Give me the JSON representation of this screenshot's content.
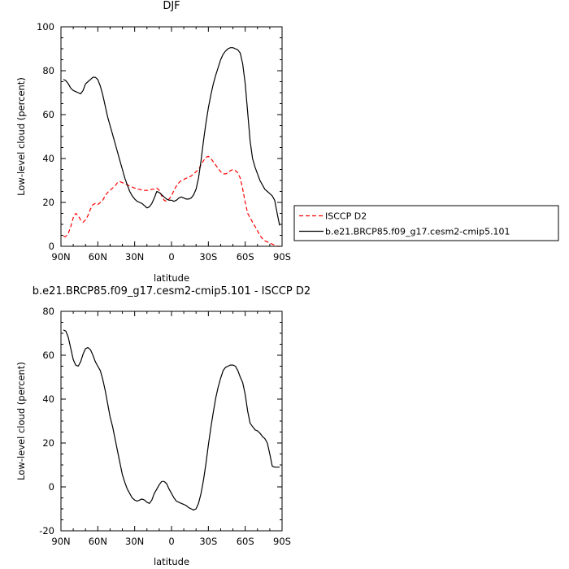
{
  "chart_data": [
    {
      "type": "line",
      "title": "DJF",
      "xlabel": "latitude",
      "ylabel": "Low-level cloud (percent)",
      "ylim": [
        0,
        100
      ],
      "yticks": [
        0,
        20,
        40,
        60,
        80,
        100
      ],
      "xlim": [
        90,
        -90
      ],
      "xticks": [
        {
          "value": 90,
          "label": "90N"
        },
        {
          "value": 60,
          "label": "60N"
        },
        {
          "value": 30,
          "label": "30N"
        },
        {
          "value": 0,
          "label": "0"
        },
        {
          "value": -30,
          "label": "30S"
        },
        {
          "value": -60,
          "label": "60S"
        },
        {
          "value": -90,
          "label": "90S"
        }
      ],
      "legend_position": "right",
      "series": [
        {
          "name": "ISCCP D2",
          "color": "#ff0000",
          "dash": "dashed",
          "x": [
            88,
            86,
            84,
            82,
            80,
            78,
            76,
            74,
            72,
            70,
            68,
            66,
            64,
            62,
            60,
            58,
            56,
            54,
            52,
            50,
            48,
            46,
            44,
            42,
            40,
            38,
            36,
            34,
            32,
            30,
            28,
            26,
            24,
            22,
            20,
            18,
            16,
            14,
            12,
            10,
            8,
            6,
            4,
            2,
            0,
            -2,
            -4,
            -6,
            -8,
            -10,
            -12,
            -14,
            -16,
            -18,
            -20,
            -22,
            -24,
            -26,
            -28,
            -30,
            -32,
            -34,
            -36,
            -38,
            -40,
            -42,
            -44,
            -46,
            -48,
            -50,
            -52,
            -54,
            -56,
            -58,
            -60,
            -62,
            -64,
            -66,
            -68,
            -70,
            -72,
            -74,
            -76,
            -78,
            -80,
            -82,
            -84,
            -86,
            -88
          ],
          "y": [
            4.5,
            4.5,
            6,
            9,
            13,
            15,
            14,
            12,
            11,
            12,
            14,
            17,
            19,
            19.5,
            19,
            20,
            21,
            23,
            24.5,
            25.5,
            26.5,
            27.5,
            29,
            29.5,
            29,
            28.5,
            28,
            27.5,
            27,
            26.5,
            26,
            26,
            25.5,
            25.5,
            25.5,
            25.5,
            26,
            26,
            26.5,
            25.5,
            23,
            21,
            20.5,
            21.5,
            23,
            25.5,
            27.5,
            29,
            30,
            30.5,
            31,
            31.5,
            32,
            33,
            34,
            35,
            37,
            39,
            40.5,
            41,
            40,
            38.5,
            37,
            35.5,
            34,
            33,
            33,
            33.5,
            34.5,
            35,
            34.5,
            33.5,
            31,
            26,
            20,
            15,
            13,
            11,
            9,
            7,
            5,
            3.5,
            2.5,
            2,
            1.5,
            1,
            0.5,
            0,
            0
          ]
        },
        {
          "name": "b.e21.BRCP85.f09_g17.cesm2-cmip5.101",
          "color": "#000000",
          "dash": "solid",
          "x": [
            88,
            86,
            84,
            82,
            80,
            78,
            76,
            74,
            72,
            70,
            68,
            66,
            64,
            62,
            60,
            58,
            56,
            54,
            52,
            50,
            48,
            46,
            44,
            42,
            40,
            38,
            36,
            34,
            32,
            30,
            28,
            26,
            24,
            22,
            20,
            18,
            16,
            14,
            12,
            10,
            8,
            6,
            4,
            2,
            0,
            -2,
            -4,
            -6,
            -8,
            -10,
            -12,
            -14,
            -16,
            -18,
            -20,
            -22,
            -24,
            -26,
            -28,
            -30,
            -32,
            -34,
            -36,
            -38,
            -40,
            -42,
            -44,
            -46,
            -48,
            -50,
            -52,
            -54,
            -56,
            -58,
            -60,
            -62,
            -64,
            -66,
            -68,
            -70,
            -72,
            -74,
            -76,
            -78,
            -80,
            -82,
            -84,
            -86,
            -88
          ],
          "y": [
            76,
            75.5,
            74,
            72,
            71,
            70.5,
            70,
            69.5,
            71,
            74,
            75,
            76,
            77,
            77,
            76,
            73,
            69,
            64,
            59,
            55,
            51,
            47,
            43,
            39,
            35,
            31,
            28,
            25,
            23,
            21.5,
            20.5,
            20,
            19.5,
            18.5,
            17.5,
            18,
            19.5,
            22,
            25,
            24.5,
            23.5,
            22.5,
            21.5,
            21,
            21,
            20.5,
            21,
            22,
            22.5,
            22,
            21.5,
            21.5,
            22,
            23.5,
            26,
            31,
            39,
            48,
            56,
            63,
            69,
            74,
            78,
            81.5,
            85,
            87.5,
            89,
            90,
            90.5,
            90.5,
            90,
            89.5,
            88,
            83,
            74,
            61,
            48,
            40,
            36,
            33,
            30,
            28,
            26,
            25,
            24,
            23,
            21,
            15,
            9.5
          ]
        }
      ]
    },
    {
      "type": "line",
      "title": "b.e21.BRCP85.f09_g17.cesm2-cmip5.101 - ISCCP D2",
      "xlabel": "latitude",
      "ylabel": "Low-level cloud (percent)",
      "ylim": [
        -20,
        80
      ],
      "yticks": [
        -20,
        0,
        20,
        40,
        60,
        80
      ],
      "xlim": [
        90,
        -90
      ],
      "xticks": [
        {
          "value": 90,
          "label": "90N"
        },
        {
          "value": 60,
          "label": "60N"
        },
        {
          "value": 30,
          "label": "30N"
        },
        {
          "value": 0,
          "label": "0"
        },
        {
          "value": -30,
          "label": "30S"
        },
        {
          "value": -60,
          "label": "60S"
        },
        {
          "value": -90,
          "label": "90S"
        }
      ],
      "series": [
        {
          "color": "#000000",
          "dash": "solid",
          "x": [
            88,
            86,
            84,
            82,
            80,
            78,
            76,
            74,
            72,
            70,
            68,
            66,
            64,
            62,
            60,
            58,
            56,
            54,
            52,
            50,
            48,
            46,
            44,
            42,
            40,
            38,
            36,
            34,
            32,
            30,
            28,
            26,
            24,
            22,
            20,
            18,
            16,
            14,
            12,
            10,
            8,
            6,
            4,
            2,
            0,
            -2,
            -4,
            -6,
            -8,
            -10,
            -12,
            -14,
            -16,
            -18,
            -20,
            -22,
            -24,
            -26,
            -28,
            -30,
            -32,
            -34,
            -36,
            -38,
            -40,
            -42,
            -44,
            -46,
            -48,
            -50,
            -52,
            -54,
            -56,
            -58,
            -60,
            -62,
            -64,
            -66,
            -68,
            -70,
            -72,
            -74,
            -76,
            -78,
            -80,
            -82,
            -84,
            -86,
            -88
          ],
          "y": [
            71.5,
            71,
            68,
            63,
            58,
            55.5,
            55,
            57,
            60.5,
            63,
            63.5,
            62.5,
            60,
            57,
            55,
            53,
            49,
            44,
            38,
            32,
            27.5,
            22,
            16.5,
            11,
            5.5,
            2,
            -1,
            -3,
            -5,
            -6,
            -6.5,
            -6,
            -5.5,
            -6,
            -7,
            -7.5,
            -6,
            -3,
            -1,
            1,
            2.5,
            2.5,
            1.5,
            -1,
            -3,
            -5,
            -6.5,
            -7,
            -7.5,
            -8,
            -8.5,
            -9.5,
            -10,
            -10.5,
            -10,
            -7.5,
            -3,
            3,
            10.5,
            19,
            27,
            34,
            40.5,
            45.5,
            49.5,
            53,
            54.5,
            55,
            55.5,
            55.5,
            55,
            53,
            50,
            47.5,
            42,
            34.5,
            29,
            27.5,
            26,
            25.5,
            24.5,
            23,
            22,
            20,
            15,
            9.5,
            9,
            9,
            9
          ]
        }
      ]
    }
  ]
}
